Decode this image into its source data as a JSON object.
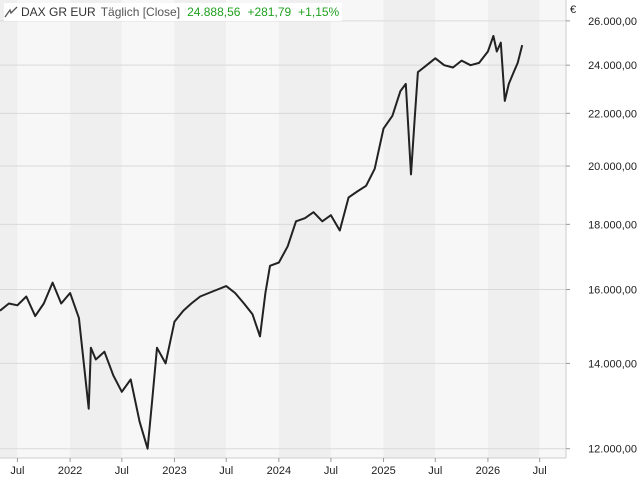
{
  "header": {
    "symbol": "DAX GR EUR",
    "interval": "Täglich [Close]",
    "last": "24.888,56",
    "change": "+281,79",
    "change_pct": "+1,15%",
    "currency": "€",
    "icon": "line-chart-icon"
  },
  "colors": {
    "line": "#222222",
    "band_dark": "#efefef",
    "band_light": "#f7f7f7",
    "change_positive": "#21a121"
  },
  "chart_data": {
    "type": "line",
    "y_scale": "log",
    "ylim": [
      11800,
      27000
    ],
    "xlim": [
      "2021-05-01",
      "2026-10-01"
    ],
    "grid": true,
    "y_ticks": [
      {
        "value": 12000,
        "label": "12.000,00"
      },
      {
        "value": 14000,
        "label": "14.000,00"
      },
      {
        "value": 16000,
        "label": "16.000,00"
      },
      {
        "value": 18000,
        "label": "18.000,00"
      },
      {
        "value": 20000,
        "label": "20.000,00"
      },
      {
        "value": 22000,
        "label": "22.000,00"
      },
      {
        "value": 24000,
        "label": "24.000,00"
      },
      {
        "value": 26000,
        "label": "26.000,00"
      }
    ],
    "x_ticks": [
      {
        "date": "2021-07-01",
        "label": "Jul"
      },
      {
        "date": "2022-01-01",
        "label": "2022"
      },
      {
        "date": "2022-07-01",
        "label": "Jul"
      },
      {
        "date": "2023-01-01",
        "label": "2023"
      },
      {
        "date": "2023-07-01",
        "label": "Jul"
      },
      {
        "date": "2024-01-01",
        "label": "2024"
      },
      {
        "date": "2024-07-01",
        "label": "Jul"
      },
      {
        "date": "2025-01-01",
        "label": "2025"
      },
      {
        "date": "2025-07-01",
        "label": "Jul"
      },
      {
        "date": "2026-01-01",
        "label": "2026"
      },
      {
        "date": "2026-07-01",
        "label": "Jul"
      }
    ],
    "x": [
      "2021-05-01",
      "2021-06-01",
      "2021-07-01",
      "2021-08-01",
      "2021-09-01",
      "2021-10-01",
      "2021-11-01",
      "2021-12-01",
      "2022-01-01",
      "2022-02-01",
      "2022-03-07",
      "2022-03-15",
      "2022-04-01",
      "2022-05-01",
      "2022-06-01",
      "2022-07-01",
      "2022-08-01",
      "2022-09-01",
      "2022-09-29",
      "2022-10-15",
      "2022-11-01",
      "2022-12-01",
      "2023-01-01",
      "2023-02-01",
      "2023-03-01",
      "2023-04-01",
      "2023-05-01",
      "2023-06-01",
      "2023-07-01",
      "2023-08-01",
      "2023-09-01",
      "2023-10-01",
      "2023-10-27",
      "2023-11-15",
      "2023-12-01",
      "2024-01-01",
      "2024-02-01",
      "2024-03-01",
      "2024-04-01",
      "2024-05-01",
      "2024-06-01",
      "2024-07-01",
      "2024-08-01",
      "2024-09-01",
      "2024-10-01",
      "2024-11-01",
      "2024-12-01",
      "2025-01-01",
      "2025-02-01",
      "2025-03-01",
      "2025-03-20",
      "2025-04-07",
      "2025-04-20",
      "2025-05-01",
      "2025-06-01",
      "2025-07-01",
      "2025-08-01",
      "2025-09-01",
      "2025-10-01",
      "2025-11-01",
      "2025-12-01",
      "2026-01-01",
      "2026-01-20",
      "2026-02-01",
      "2026-02-15",
      "2026-03-01",
      "2026-03-15",
      "2026-04-01",
      "2026-04-15",
      "2026-05-01"
    ],
    "values": [
      15400,
      15600,
      15550,
      15800,
      15250,
      15600,
      16200,
      15600,
      15900,
      15200,
      12900,
      14400,
      14100,
      14300,
      13700,
      13300,
      13600,
      12600,
      12000,
      13100,
      14400,
      14000,
      15100,
      15400,
      15600,
      15800,
      15900,
      16000,
      16100,
      15900,
      15600,
      15300,
      14700,
      15900,
      16700,
      16800,
      17300,
      18100,
      18200,
      18400,
      18100,
      18300,
      17800,
      18900,
      19100,
      19300,
      19900,
      21400,
      21900,
      22900,
      23200,
      19700,
      21800,
      23700,
      24000,
      24300,
      24000,
      23900,
      24200,
      24000,
      24100,
      24600,
      25300,
      24600,
      25000,
      22500,
      23200,
      23700,
      24100,
      24888
    ]
  }
}
